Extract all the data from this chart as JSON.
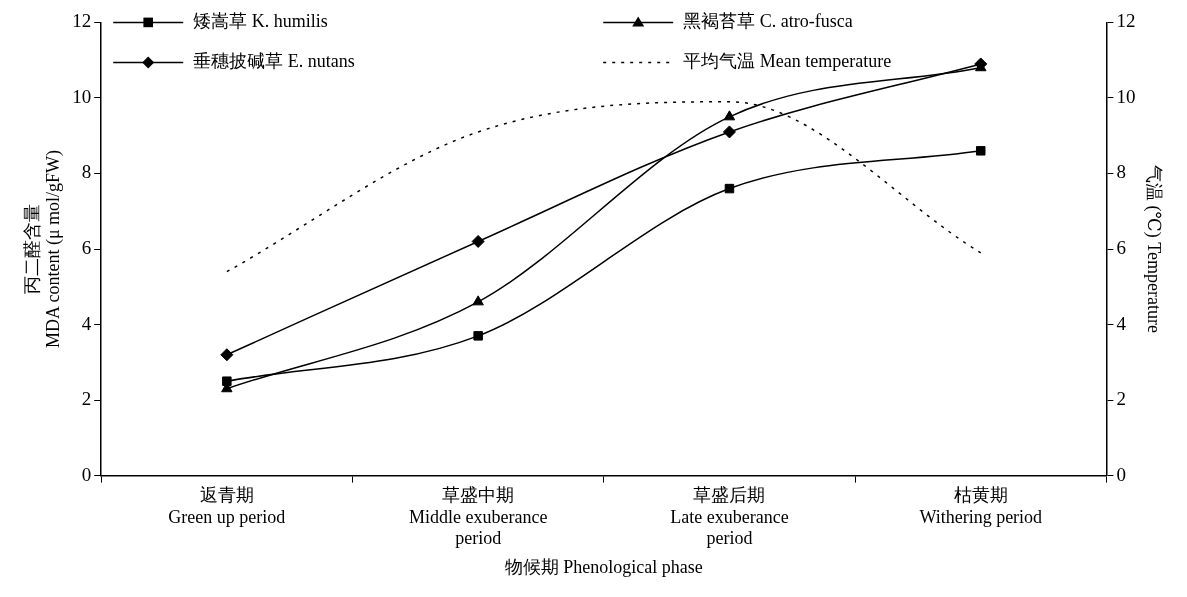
{
  "chart_data": {
    "type": "line",
    "xlabel": "物候期 Phenological phase",
    "ylabel": "丙二醛含量\nMDA content (μ mol/gFW)",
    "y2label": "气温 (℃) Temperature",
    "categories": [
      "返青期\nGreen up period",
      "草盛中期\nMiddle exuberance\nperiod",
      "草盛后期\nLate exuberance\nperiod",
      "枯黄期\nWithering period"
    ],
    "series": [
      {
        "name": "矮嵩草 K. humilis",
        "color": "#000000",
        "marker": "square",
        "line_style": "solid",
        "values": [
          2.5,
          3.7,
          7.6,
          8.6
        ]
      },
      {
        "name": "黑褐苔草 C. atro-fusca",
        "color": "#000000",
        "marker": "triangle",
        "line_style": "solid",
        "values": [
          2.3,
          4.6,
          9.5,
          10.8
        ]
      },
      {
        "name": "垂穗披碱草 E. nutans",
        "color": "#000000",
        "marker": "diamond",
        "line_style": "solid",
        "values": [
          3.2,
          6.2,
          9.1,
          10.9
        ]
      },
      {
        "name": "平均气温 Mean temperature",
        "color": "#000000",
        "marker": "none",
        "line_style": "dotted",
        "axis": "y2",
        "values": [
          5.4,
          9.1,
          9.9,
          5.9
        ]
      }
    ],
    "ylim": [
      0,
      12
    ],
    "yticks": [
      0,
      2,
      4,
      6,
      8,
      10,
      12
    ],
    "y2lim": [
      0,
      12
    ],
    "y2ticks": [
      0,
      2,
      4,
      6,
      8,
      10,
      12
    ],
    "grid": false,
    "legend": "top left"
  }
}
